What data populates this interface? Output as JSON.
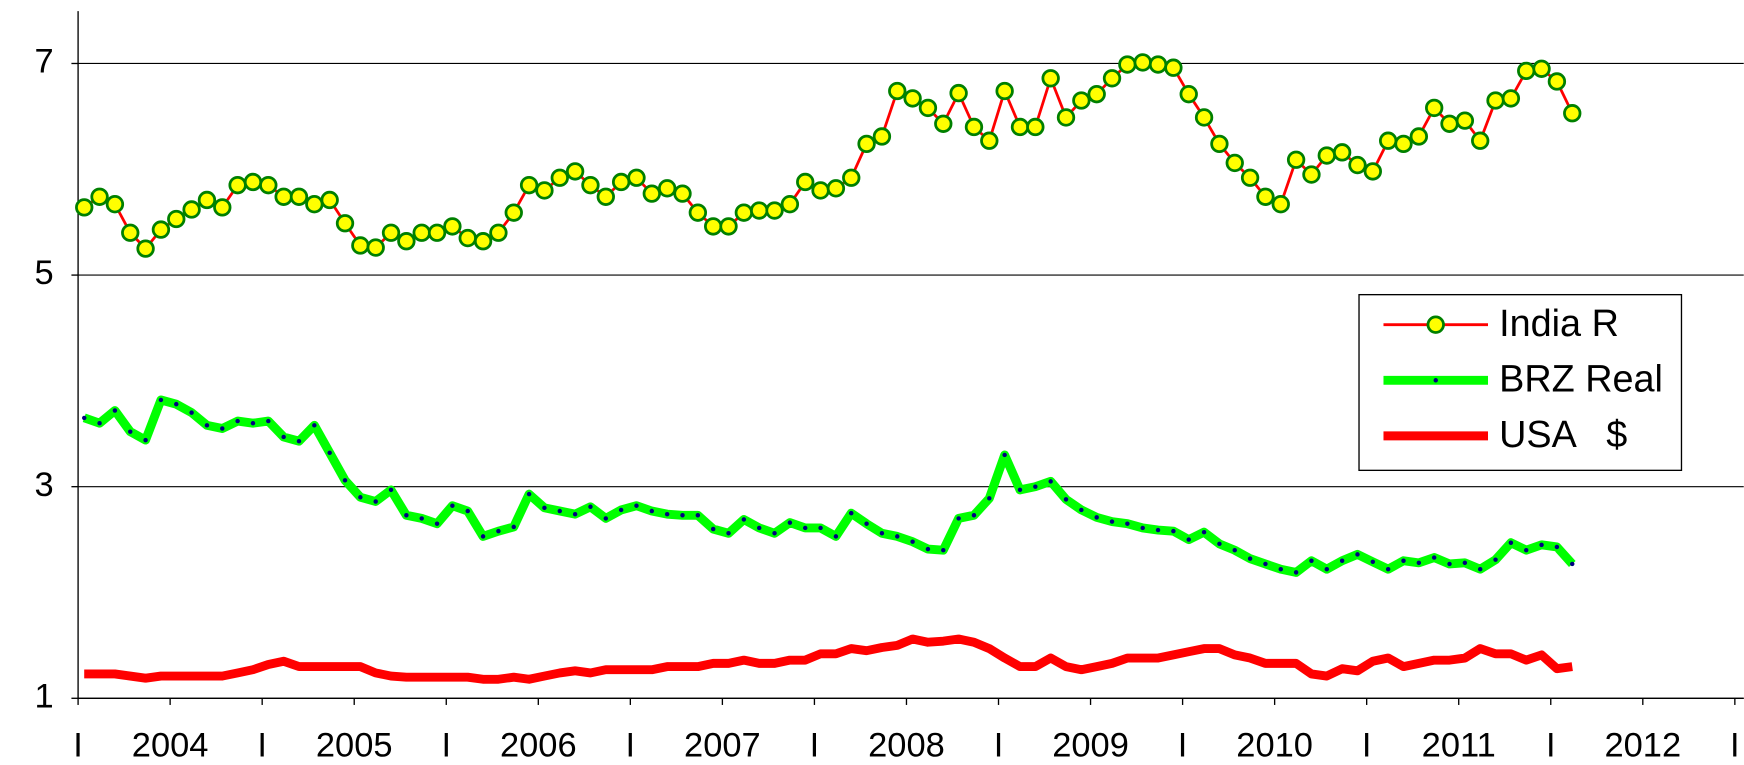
{
  "chart_data": {
    "type": "line",
    "categories": [
      null,
      null,
      null,
      null,
      null,
      null,
      null,
      null,
      null,
      null,
      null,
      null,
      null,
      null,
      null,
      null,
      null,
      null,
      null,
      null,
      null,
      null,
      null,
      null,
      null,
      null,
      null,
      null,
      null,
      null,
      null,
      null,
      null,
      null,
      null,
      null,
      null,
      null,
      null,
      null,
      null,
      null,
      null,
      null,
      null,
      null,
      null,
      null,
      null,
      null,
      null,
      null,
      null,
      null,
      null,
      null,
      null,
      null,
      null,
      null,
      null,
      null,
      null,
      null,
      null,
      null,
      null,
      null,
      null,
      null,
      null,
      null,
      null,
      null,
      null,
      null,
      null,
      null,
      null,
      null,
      null,
      null,
      null,
      null,
      null,
      null,
      null,
      null,
      null,
      null,
      null,
      null,
      null,
      null,
      null,
      null,
      null,
      null
    ],
    "series": [
      {
        "name": "India R",
        "color": "#ff0000",
        "marker": "circle",
        "marker_color": "#ffff00",
        "marker_edge": "#008000",
        "values": [
          5.64,
          5.74,
          5.67,
          5.4,
          5.25,
          5.43,
          5.53,
          5.62,
          5.71,
          5.64,
          5.85,
          5.88,
          5.85,
          5.74,
          5.74,
          5.67,
          5.71,
          5.49,
          5.28,
          5.26,
          5.4,
          5.32,
          5.4,
          5.4,
          5.46,
          5.35,
          5.32,
          5.4,
          5.59,
          5.85,
          5.8,
          5.92,
          5.98,
          5.85,
          5.74,
          5.88,
          5.92,
          5.77,
          5.82,
          5.77,
          5.59,
          5.46,
          5.46,
          5.59,
          5.61,
          5.61,
          5.67,
          5.88,
          5.8,
          5.82,
          5.92,
          6.24,
          6.31,
          6.74,
          6.67,
          6.58,
          6.43,
          6.72,
          6.4,
          6.27,
          6.74,
          6.4,
          6.4,
          6.86,
          6.49,
          6.65,
          6.71,
          6.86,
          6.99,
          7.01,
          6.99,
          6.96,
          6.71,
          6.49,
          6.24,
          6.06,
          5.92,
          5.74,
          5.67,
          6.09,
          5.95,
          6.13,
          6.16,
          6.04,
          5.98,
          6.27,
          6.24,
          6.31,
          6.58,
          6.43,
          6.46,
          6.27,
          6.65,
          6.67,
          6.93,
          6.95,
          6.83,
          6.53
        ]
      },
      {
        "name": "BRZ Real",
        "color": "#00ff00",
        "marker": "dot",
        "marker_color": "#000080",
        "values": [
          3.65,
          3.6,
          3.72,
          3.52,
          3.44,
          3.82,
          3.78,
          3.7,
          3.58,
          3.55,
          3.62,
          3.6,
          3.62,
          3.47,
          3.43,
          3.58,
          3.32,
          3.06,
          2.9,
          2.86,
          2.97,
          2.73,
          2.7,
          2.65,
          2.82,
          2.77,
          2.53,
          2.58,
          2.62,
          2.93,
          2.8,
          2.77,
          2.74,
          2.81,
          2.7,
          2.78,
          2.82,
          2.77,
          2.74,
          2.73,
          2.73,
          2.6,
          2.56,
          2.69,
          2.61,
          2.56,
          2.66,
          2.61,
          2.61,
          2.53,
          2.75,
          2.65,
          2.56,
          2.53,
          2.48,
          2.41,
          2.4,
          2.7,
          2.73,
          2.89,
          3.3,
          2.97,
          3.0,
          3.05,
          2.88,
          2.78,
          2.71,
          2.67,
          2.65,
          2.61,
          2.59,
          2.58,
          2.5,
          2.57,
          2.46,
          2.4,
          2.32,
          2.27,
          2.22,
          2.19,
          2.3,
          2.22,
          2.3,
          2.36,
          2.29,
          2.22,
          2.3,
          2.28,
          2.33,
          2.27,
          2.28,
          2.22,
          2.31,
          2.47,
          2.4,
          2.45,
          2.43,
          2.27
        ]
      },
      {
        "name": "USA   $",
        "color": "#ff0000",
        "marker": "none",
        "values": [
          1.23,
          1.23,
          1.23,
          1.21,
          1.19,
          1.21,
          1.21,
          1.21,
          1.21,
          1.21,
          1.24,
          1.27,
          1.32,
          1.35,
          1.3,
          1.3,
          1.3,
          1.3,
          1.3,
          1.24,
          1.21,
          1.2,
          1.2,
          1.2,
          1.2,
          1.2,
          1.18,
          1.18,
          1.2,
          1.18,
          1.21,
          1.24,
          1.26,
          1.24,
          1.27,
          1.27,
          1.27,
          1.27,
          1.3,
          1.3,
          1.3,
          1.33,
          1.33,
          1.36,
          1.33,
          1.33,
          1.36,
          1.36,
          1.42,
          1.42,
          1.47,
          1.45,
          1.48,
          1.5,
          1.56,
          1.53,
          1.54,
          1.56,
          1.53,
          1.47,
          1.38,
          1.3,
          1.3,
          1.38,
          1.3,
          1.27,
          1.3,
          1.33,
          1.38,
          1.38,
          1.38,
          1.41,
          1.44,
          1.47,
          1.47,
          1.41,
          1.38,
          1.33,
          1.33,
          1.33,
          1.23,
          1.21,
          1.28,
          1.26,
          1.35,
          1.38,
          1.3,
          1.33,
          1.36,
          1.36,
          1.38,
          1.47,
          1.42,
          1.42,
          1.36,
          1.41,
          1.28,
          1.3
        ]
      }
    ],
    "xlim": [
      0,
      108
    ],
    "xticks": [
      {
        "value": 0,
        "label": "I"
      },
      {
        "value": 6,
        "label": "2004"
      },
      {
        "value": 12,
        "label": "I"
      },
      {
        "value": 18,
        "label": "2005"
      },
      {
        "value": 24,
        "label": "I"
      },
      {
        "value": 30,
        "label": "2006"
      },
      {
        "value": 36,
        "label": "I"
      },
      {
        "value": 42,
        "label": "2007"
      },
      {
        "value": 48,
        "label": "I"
      },
      {
        "value": 54,
        "label": "2008"
      },
      {
        "value": 60,
        "label": "I"
      },
      {
        "value": 66,
        "label": "2009"
      },
      {
        "value": 72,
        "label": "I"
      },
      {
        "value": 78,
        "label": "2010"
      },
      {
        "value": 84,
        "label": "I"
      },
      {
        "value": 90,
        "label": "2011"
      },
      {
        "value": 96,
        "label": "I"
      },
      {
        "value": 102,
        "label": "2012"
      },
      {
        "value": 108,
        "label": "I"
      }
    ],
    "ylim": [
      1,
      7.6
    ],
    "yticks": [
      1,
      3,
      5,
      7
    ],
    "grid": true,
    "legend": "right"
  }
}
